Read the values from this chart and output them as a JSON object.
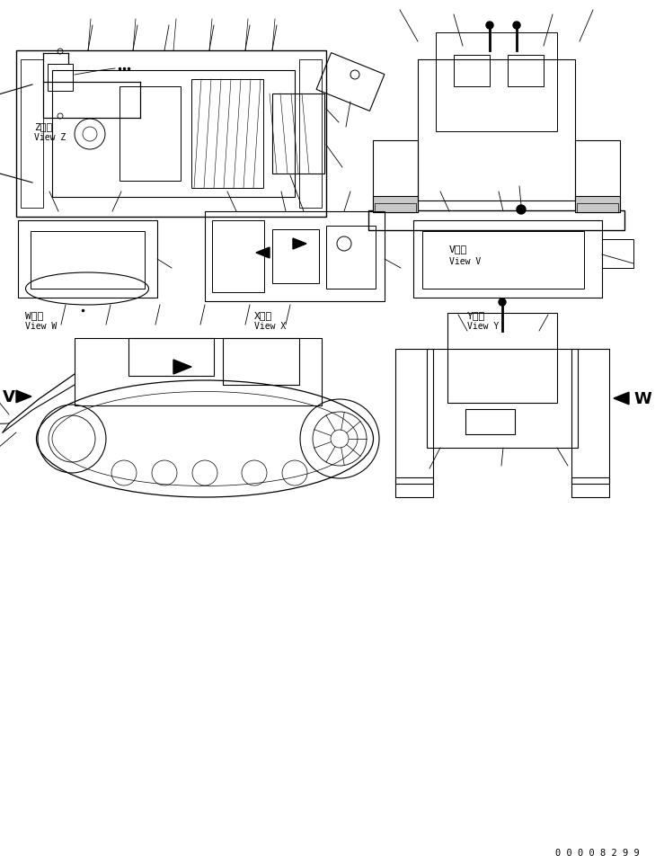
{
  "bg_color": "#ffffff",
  "text_color": "#000000",
  "line_color": "#000000",
  "figsize": [
    7.39,
    9.62
  ],
  "dpi": 100,
  "part_number": "0 0 0 0 8 2 9 9",
  "label_V_jp": "V　視",
  "label_V_en": "View V",
  "label_W_jp": "W　視",
  "label_W_en": "View W",
  "label_X_jp": "X　視",
  "label_X_en": "View X",
  "label_Y_jp": "Y　視",
  "label_Y_en": "View Y",
  "label_Z_jp": "Z　視",
  "label_Z_en": "View Z"
}
